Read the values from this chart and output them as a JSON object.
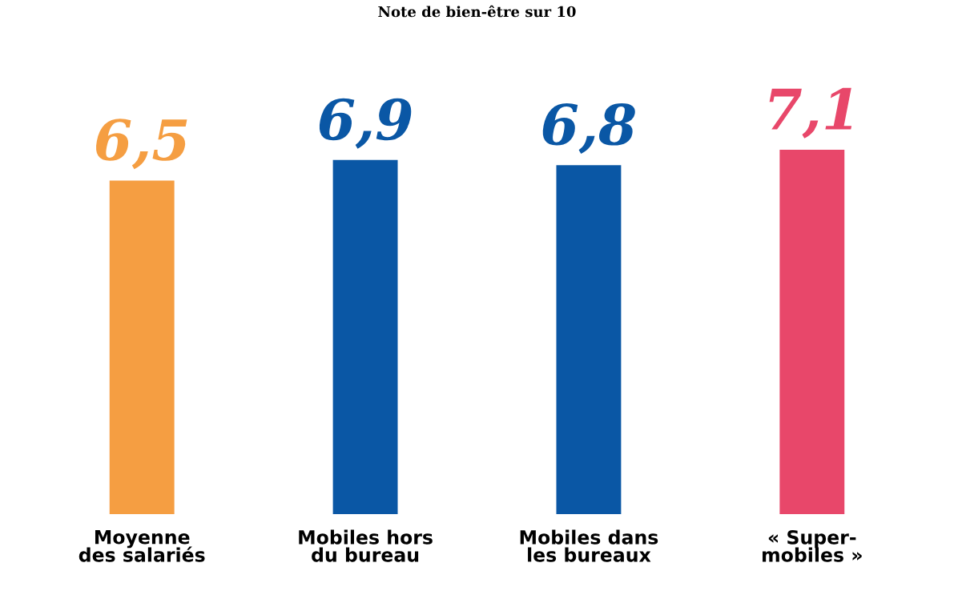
{
  "chart_data": {
    "type": "bar",
    "title": "Note de bien-être sur 10",
    "categories": [
      "Moyenne\ndes salariés",
      "Mobiles hors\ndu bureau",
      "Mobiles dans\nles bureaux",
      "« Super-\nmobiles »"
    ],
    "values": [
      6.5,
      6.9,
      6.8,
      7.1
    ],
    "value_labels": [
      "6,5",
      "6,9",
      "6,8",
      "7,1"
    ],
    "colors": [
      "#f59e42",
      "#0a57a5",
      "#0a57a5",
      "#e8476a"
    ],
    "grid": false,
    "legend": false,
    "tick_labels": "x"
  }
}
